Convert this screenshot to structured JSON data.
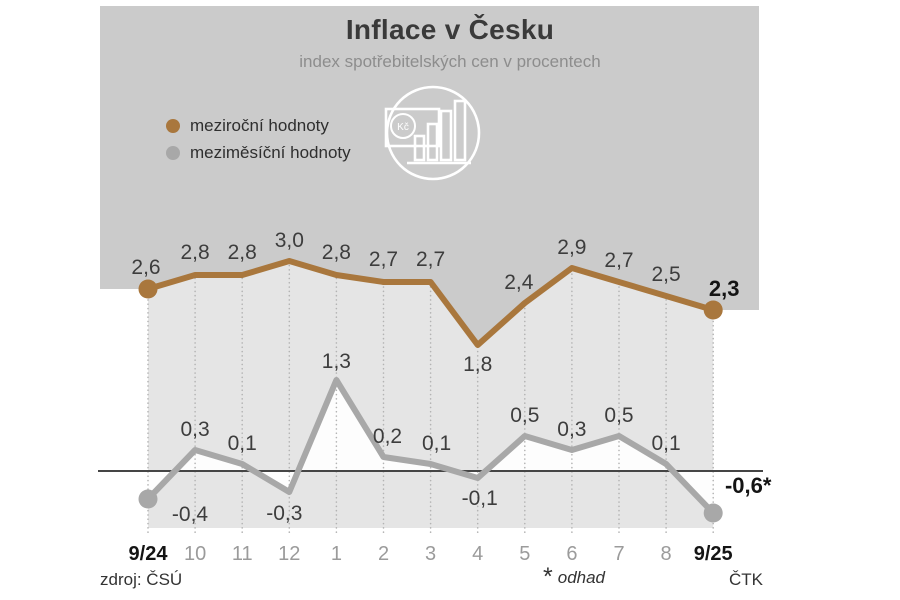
{
  "header": {
    "title": "Inflace v Česku",
    "subtitle": "index spotřebitelských cen v procentech"
  },
  "legend": {
    "items": [
      {
        "label": "meziroční hodnoty",
        "color": "#a9773d"
      },
      {
        "label": "meziměsíční hodnoty",
        "color": "#a8a8a8"
      }
    ]
  },
  "icon": {
    "currency_label": "Kč"
  },
  "footer": {
    "source": "zdroj: ČSÚ",
    "note_symbol": "*",
    "note_text": "odhad",
    "credit": "ČTK"
  },
  "colors": {
    "yearly_line": "#a9773d",
    "monthly_line": "#a8a8a8",
    "header_box": "#cbcbcb",
    "plot_bg": "#e5e5e5",
    "area_fill_white": "#fdfdfd",
    "zero_line": "#454545",
    "gridline": "#b3b3b3",
    "label_dark": "#3d3d3d",
    "label_bold": "#141414",
    "axis_gray": "#9b9b9b"
  },
  "chart_data": {
    "type": "line",
    "title": "Inflace v Česku",
    "subtitle": "index spotřebitelských cen v procentech",
    "unit": "%",
    "baseline": 0,
    "ylim": [
      -0.8,
      3.2
    ],
    "grid": "dotted-vertical",
    "categories": [
      "9/24",
      "10",
      "11",
      "12",
      "1",
      "2",
      "3",
      "4",
      "5",
      "6",
      "7",
      "8",
      "9/25"
    ],
    "bold_categories": [
      "9/24",
      "9/25"
    ],
    "series": [
      {
        "name": "meziroční hodnoty",
        "color": "#a9773d",
        "values": [
          2.6,
          2.8,
          2.8,
          3.0,
          2.8,
          2.7,
          2.7,
          1.8,
          2.4,
          2.9,
          2.7,
          2.5,
          2.3
        ],
        "labels": [
          "2,6",
          "2,8",
          "2,8",
          "3,0",
          "2,8",
          "2,7",
          "2,7",
          "1,8",
          "2,4",
          "2,9",
          "2,7",
          "2,5",
          "2,3"
        ],
        "label_offsets": [
          [
            -2,
            -15
          ],
          [
            0,
            -16
          ],
          [
            0,
            -16
          ],
          [
            0,
            -14
          ],
          [
            0,
            -16
          ],
          [
            0,
            -16
          ],
          [
            0,
            -16
          ],
          [
            0,
            26
          ],
          [
            -6,
            -14
          ],
          [
            0,
            -14
          ],
          [
            0,
            -15
          ],
          [
            0,
            -15
          ],
          [
            11,
            -14
          ]
        ],
        "endpoint_dots": [
          0,
          12
        ],
        "bold_label_index": 12
      },
      {
        "name": "meziměsíční hodnoty",
        "color": "#a8a8a8",
        "values": [
          -0.4,
          0.3,
          0.1,
          -0.3,
          1.3,
          0.2,
          0.1,
          -0.1,
          0.5,
          0.3,
          0.5,
          0.1,
          -0.6
        ],
        "labels": [
          "-0,4",
          "0,3",
          "0,1",
          "-0,3",
          "1,3",
          "0,2",
          "0,1",
          "-0,1",
          "0,5",
          "0,3",
          "0,5",
          "0,1",
          "-0,6*"
        ],
        "label_offsets": [
          [
            42,
            22
          ],
          [
            0,
            -14
          ],
          [
            0,
            -14
          ],
          [
            -5,
            28
          ],
          [
            0,
            -12
          ],
          [
            4,
            -14
          ],
          [
            6,
            -14
          ],
          [
            2,
            27
          ],
          [
            0,
            -14
          ],
          [
            0,
            -14
          ],
          [
            0,
            -14
          ],
          [
            0,
            -14
          ],
          [
            35,
            -20
          ]
        ],
        "endpoint_dots": [
          0,
          12
        ],
        "bold_label_index": 12
      }
    ],
    "annotations": {
      "estimate_note": "* odhad"
    }
  }
}
